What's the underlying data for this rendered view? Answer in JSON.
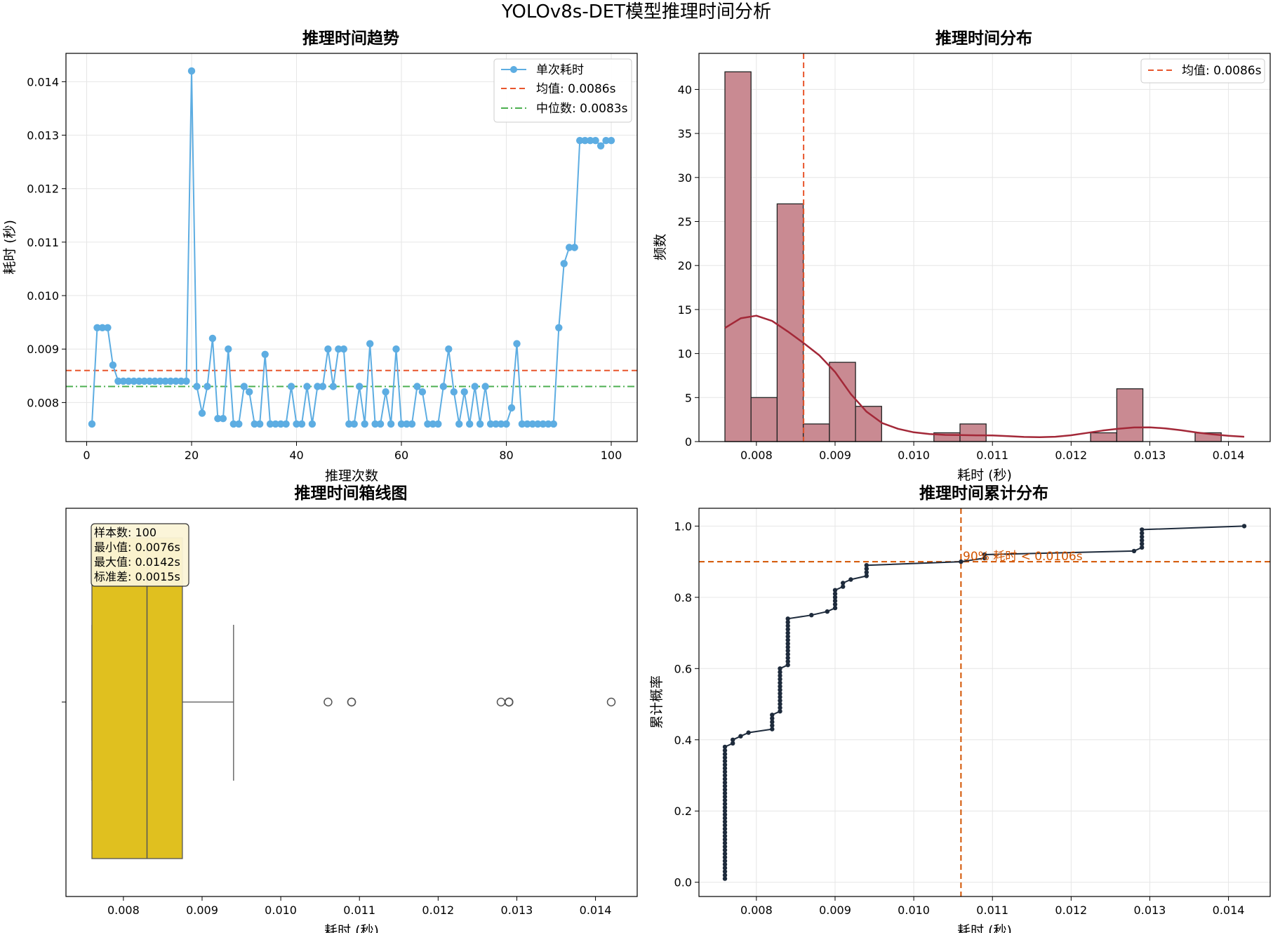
{
  "figure": {
    "title": "YOLOv8s-DET模型推理时间分析"
  },
  "colors": {
    "line": "#5DADE2",
    "mean": "#E8562C",
    "median": "#4CAF50",
    "hist_fill": "#C98A92",
    "kde": "#A32838",
    "box_fill": "#E0C01F",
    "cdf": "#1E2B3C",
    "p90": "#D35400"
  },
  "chart_data": [
    {
      "id": "trend",
      "type": "line",
      "title": "推理时间趋势",
      "xlabel": "推理次数",
      "ylabel": "耗时 (秒)",
      "xlim": [
        -3.95,
        104.95
      ],
      "ylim": [
        0.00727,
        0.01453
      ],
      "xticks": [
        0,
        20,
        40,
        60,
        80,
        100
      ],
      "yticks": [
        0.008,
        0.009,
        0.01,
        0.011,
        0.012,
        0.013,
        0.014
      ],
      "ytick_labels": [
        "0.008",
        "0.009",
        "0.010",
        "0.011",
        "0.012",
        "0.013",
        "0.014"
      ],
      "grid": true,
      "legend": {
        "position": "top-right",
        "entries": [
          "单次耗时",
          "均值: 0.0086s",
          "中位数: 0.0083s"
        ]
      },
      "mean": 0.0086,
      "median": 0.0083,
      "x_start": 1,
      "values": [
        0.0076,
        0.0094,
        0.0094,
        0.0094,
        0.0087,
        0.0084,
        0.0084,
        0.0084,
        0.0084,
        0.0084,
        0.0084,
        0.0084,
        0.0084,
        0.0084,
        0.0084,
        0.0084,
        0.0084,
        0.0084,
        0.0084,
        0.0142,
        0.0083,
        0.0078,
        0.0083,
        0.0092,
        0.0077,
        0.0077,
        0.009,
        0.0076,
        0.0076,
        0.0083,
        0.0082,
        0.0076,
        0.0076,
        0.0089,
        0.0076,
        0.0076,
        0.0076,
        0.0076,
        0.0083,
        0.0076,
        0.0076,
        0.0083,
        0.0076,
        0.0083,
        0.0083,
        0.009,
        0.0083,
        0.009,
        0.009,
        0.0076,
        0.0076,
        0.0083,
        0.0076,
        0.0091,
        0.0076,
        0.0076,
        0.0082,
        0.0076,
        0.009,
        0.0076,
        0.0076,
        0.0076,
        0.0083,
        0.0082,
        0.0076,
        0.0076,
        0.0076,
        0.0083,
        0.009,
        0.0082,
        0.0076,
        0.0082,
        0.0076,
        0.0083,
        0.0076,
        0.0083,
        0.0076,
        0.0076,
        0.0076,
        0.0076,
        0.0079,
        0.0091,
        0.0076,
        0.0076,
        0.0076,
        0.0076,
        0.0076,
        0.0076,
        0.0076,
        0.0094,
        0.0106,
        0.0109,
        0.0109,
        0.0129,
        0.0129,
        0.0129,
        0.0129,
        0.0128,
        0.0129,
        0.0129
      ]
    },
    {
      "id": "hist",
      "type": "bar",
      "title": "推理时间分布",
      "xlabel": "耗时 (秒)",
      "ylabel": "频数",
      "xlim": [
        0.00727,
        0.01453
      ],
      "ylim": [
        0,
        44.1
      ],
      "xticks": [
        0.008,
        0.009,
        0.01,
        0.011,
        0.012,
        0.013,
        0.014
      ],
      "xtick_labels": [
        "0.008",
        "0.009",
        "0.010",
        "0.011",
        "0.012",
        "0.013",
        "0.014"
      ],
      "yticks": [
        0,
        5,
        10,
        15,
        20,
        25,
        30,
        35,
        40
      ],
      "grid": true,
      "legend": {
        "position": "top-right",
        "entries": [
          "均值: 0.0086s"
        ]
      },
      "mean": 0.0086,
      "bin_start": 0.0076,
      "bin_width": 0.000332,
      "counts": [
        42,
        5,
        27,
        2,
        9,
        4,
        0,
        0,
        1,
        2,
        0,
        0,
        0,
        0,
        1,
        6,
        0,
        0,
        1
      ],
      "kde": [
        [
          0.0076,
          12.9
        ],
        [
          0.0078,
          14.0
        ],
        [
          0.008,
          14.3
        ],
        [
          0.0082,
          13.7
        ],
        [
          0.0084,
          12.5
        ],
        [
          0.0086,
          11.2
        ],
        [
          0.0088,
          9.8
        ],
        [
          0.009,
          7.9
        ],
        [
          0.0092,
          5.4
        ],
        [
          0.0094,
          3.4
        ],
        [
          0.0096,
          2.1
        ],
        [
          0.0098,
          1.45
        ],
        [
          0.01,
          1.05
        ],
        [
          0.0102,
          0.85
        ],
        [
          0.0104,
          0.76
        ],
        [
          0.0106,
          0.73
        ],
        [
          0.0108,
          0.71
        ],
        [
          0.011,
          0.69
        ],
        [
          0.0112,
          0.62
        ],
        [
          0.0114,
          0.53
        ],
        [
          0.0116,
          0.5
        ],
        [
          0.0118,
          0.55
        ],
        [
          0.012,
          0.72
        ],
        [
          0.0122,
          0.98
        ],
        [
          0.0124,
          1.25
        ],
        [
          0.0126,
          1.45
        ],
        [
          0.0128,
          1.6
        ],
        [
          0.013,
          1.62
        ],
        [
          0.0132,
          1.5
        ],
        [
          0.0134,
          1.28
        ],
        [
          0.0136,
          1.03
        ],
        [
          0.0138,
          0.82
        ],
        [
          0.014,
          0.66
        ],
        [
          0.0142,
          0.55
        ]
      ]
    },
    {
      "id": "box",
      "type": "box",
      "title": "推理时间箱线图",
      "xlabel": "耗时 (秒)",
      "xlim": [
        0.00727,
        0.01453
      ],
      "xticks": [
        0.008,
        0.009,
        0.01,
        0.011,
        0.012,
        0.013,
        0.014
      ],
      "xtick_labels": [
        "0.008",
        "0.009",
        "0.010",
        "0.011",
        "0.012",
        "0.013",
        "0.014"
      ],
      "q1": 0.0076,
      "median": 0.0083,
      "q3": 0.00875,
      "whisker_low": 0.0076,
      "whisker_high": 0.0094,
      "outliers": [
        0.0106,
        0.0109,
        0.0109,
        0.0128,
        0.0129,
        0.0129,
        0.0129,
        0.0129,
        0.0129,
        0.0129,
        0.0142
      ],
      "stats": [
        "样本数: 100",
        "最小值: 0.0076s",
        "最大值: 0.0142s",
        "标准差: 0.0015s"
      ]
    },
    {
      "id": "cdf",
      "type": "line",
      "title": "推理时间累计分布",
      "xlabel": "耗时 (秒)",
      "ylabel": "累计概率",
      "xlim": [
        0.00727,
        0.01453
      ],
      "ylim": [
        -0.04,
        1.05
      ],
      "xticks": [
        0.008,
        0.009,
        0.01,
        0.011,
        0.012,
        0.013,
        0.014
      ],
      "xtick_labels": [
        "0.008",
        "0.009",
        "0.010",
        "0.011",
        "0.012",
        "0.013",
        "0.014"
      ],
      "yticks": [
        0.0,
        0.2,
        0.4,
        0.6,
        0.8,
        1.0
      ],
      "ytick_labels": [
        "0.0",
        "0.2",
        "0.4",
        "0.6",
        "0.8",
        "1.0"
      ],
      "grid": true,
      "p90_value": 0.0106,
      "p90_level": 0.9,
      "p90_label": "90% 耗时 < 0.0106s"
    }
  ]
}
